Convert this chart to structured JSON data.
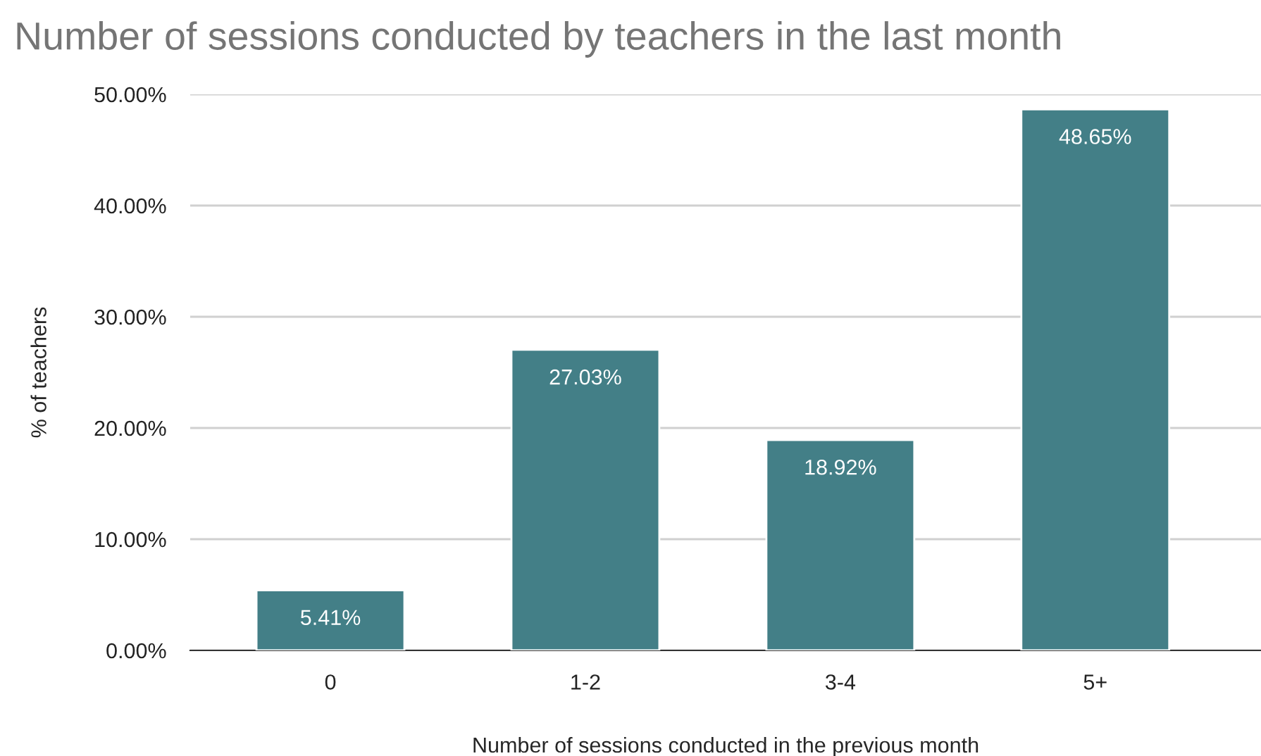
{
  "chart_data": {
    "type": "bar",
    "title": "Number of sessions conducted by teachers in the last month",
    "xlabel": "Number of sessions conducted in the previous month",
    "ylabel": "% of teachers",
    "categories": [
      "0",
      "1-2",
      "3-4",
      "5+"
    ],
    "values": [
      5.41,
      27.03,
      18.92,
      48.65
    ],
    "value_labels": [
      "5.41%",
      "27.03%",
      "18.92%",
      "48.65%"
    ],
    "color": "#437f87",
    "ylim": [
      0,
      50
    ],
    "yticks": [
      {
        "value": 0,
        "label": "0.00%"
      },
      {
        "value": 10,
        "label": "10.00%"
      },
      {
        "value": 20,
        "label": "20.00%"
      },
      {
        "value": 30,
        "label": "30.00%"
      },
      {
        "value": 40,
        "label": "40.00%"
      },
      {
        "value": 50,
        "label": "50.00%"
      }
    ],
    "grid": "y",
    "legend": false
  }
}
